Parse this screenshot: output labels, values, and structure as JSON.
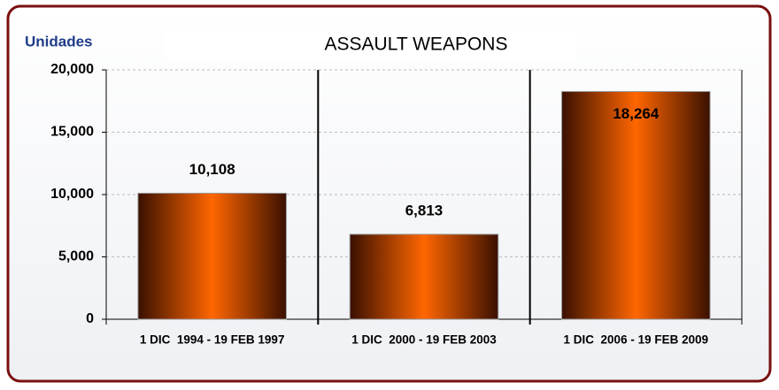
{
  "chart_data": {
    "type": "bar",
    "title": "ASSAULT WEAPONS",
    "y_label": "Unidades",
    "categories": [
      "1 DIC  1994 - 19 FEB 1997",
      "1 DIC  2000 - 19 FEB 2003",
      "1 DIC  2006 - 19 FEB 2009"
    ],
    "values": [
      10108,
      6813,
      18264
    ],
    "value_labels": [
      "10,108",
      "6,813",
      "18,264"
    ],
    "color": "#ff6600",
    "ylim": [
      0,
      20000
    ],
    "yticks": [
      0,
      {
        "value": 5000,
        "label": "5,000"
      },
      {
        "value": 10000,
        "label": "10,000"
      },
      {
        "value": 15000,
        "label": "15,000"
      },
      {
        "value": 20000,
        "label": "20,000"
      }
    ],
    "grid": true
  }
}
